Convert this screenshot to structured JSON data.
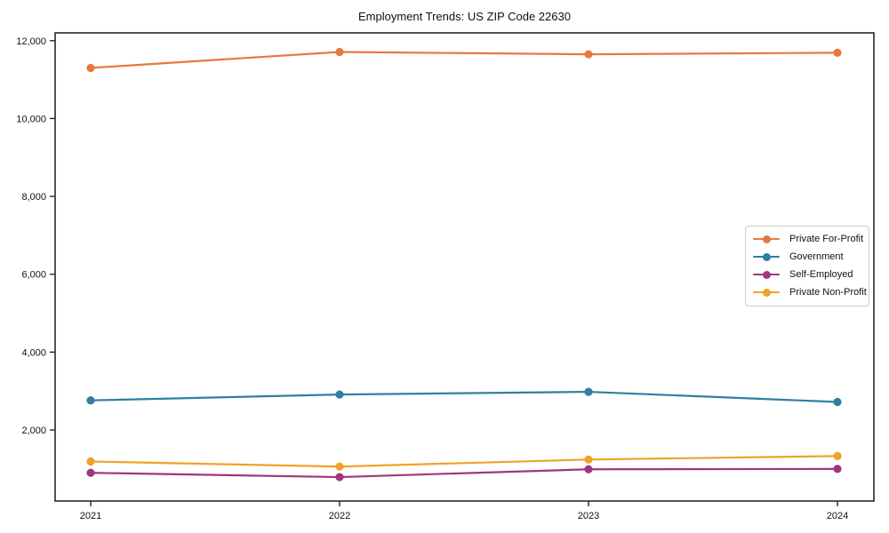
{
  "title": "Employment Trends: US ZIP Code 22630",
  "chart_data": {
    "type": "line",
    "title": "Employment Trends: US ZIP Code 22630",
    "x": [
      2021,
      2022,
      2023,
      2024
    ],
    "x_tick_labels": [
      "2021",
      "2022",
      "2023",
      "2024"
    ],
    "y_ticks": [
      2000,
      4000,
      6000,
      8000,
      10000,
      12000
    ],
    "y_tick_labels": [
      "2,000",
      "4,000",
      "6,000",
      "8,000",
      "10,000",
      "12,000"
    ],
    "ylim": [
      175,
      12200
    ],
    "xlabel": "",
    "ylabel": "",
    "grid": false,
    "legend_position": "center right",
    "marker": "circle",
    "series": [
      {
        "name": "Private For-Profit",
        "color": "#e8783e",
        "values": [
          11300,
          11710,
          11650,
          11690
        ]
      },
      {
        "name": "Government",
        "color": "#2f7fa3",
        "values": [
          2760,
          2910,
          2980,
          2720
        ]
      },
      {
        "name": "Self-Employed",
        "color": "#a0367f",
        "values": [
          900,
          790,
          990,
          1000
        ]
      },
      {
        "name": "Private Non-Profit",
        "color": "#efa229",
        "values": [
          1190,
          1060,
          1240,
          1330
        ]
      }
    ]
  },
  "colors": {
    "spine": "#1a1a1a",
    "legend_border": "#cccccc",
    "background": "#ffffff"
  }
}
